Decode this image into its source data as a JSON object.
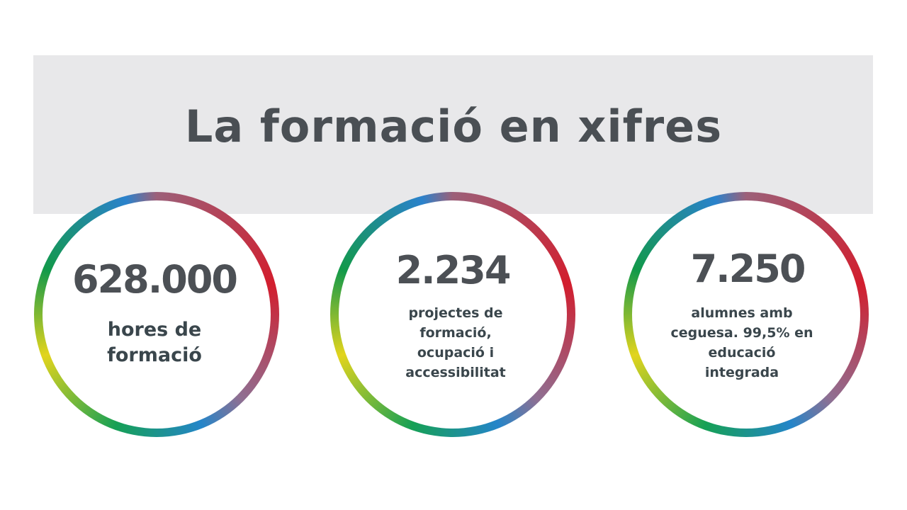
{
  "header": {
    "title": "La formació en xifres"
  },
  "stats": [
    {
      "value": "628.000",
      "label_lines": [
        "hores de",
        "formació"
      ]
    },
    {
      "value": "2.234",
      "label_lines": [
        "projectes de",
        "formació,",
        "ocupació i",
        "accessibilitat"
      ]
    },
    {
      "value": "7.250",
      "label_lines": [
        "alumnes amb",
        "ceguesa. 99,5% en",
        "educació",
        "integrada"
      ]
    }
  ],
  "colors": {
    "band": "#e8e8ea",
    "title": "#4a4f54",
    "value": "#4c5055",
    "label": "#3a464c",
    "ring_red": "#d21e2e",
    "ring_blue": "#2485c9",
    "ring_green": "#16a055",
    "ring_yellow": "#e2d41d"
  }
}
